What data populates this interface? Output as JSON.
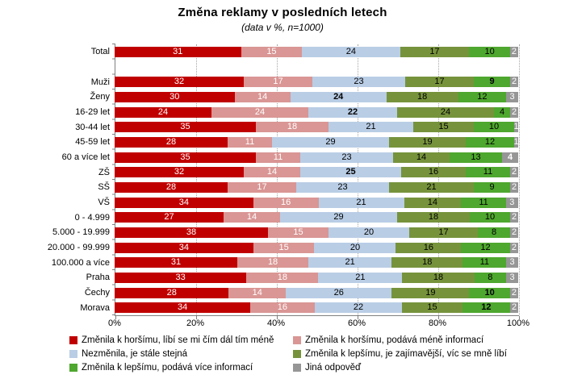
{
  "chart_data": {
    "type": "bar",
    "orientation": "horizontal",
    "stacked": true,
    "title": "Změna reklamy v posledních letech",
    "subtitle": "(data v %, n=1000)",
    "unit": "%",
    "xlim": [
      0,
      100
    ],
    "x_ticks": [
      "0%",
      "20%",
      "40%",
      "60%",
      "80%",
      "100%"
    ],
    "grid_percents": [
      20,
      40,
      60,
      80,
      100
    ],
    "legend_position": "bottom",
    "series": [
      {
        "name": "Změnila k horšímu, líbí se mi čím dál tím méně",
        "color": "#C00000",
        "label_color": "#FFFFFF"
      },
      {
        "name": "Změnila k horšímu, podává méně informací",
        "color": "#D99694",
        "label_color": "#FFFFFF"
      },
      {
        "name": "Nezměnila, je stále stejná",
        "color": "#B9CDE5",
        "label_color": "#000000"
      },
      {
        "name": "Změnila k lepšímu, je zajímavější, víc se mně líbí",
        "color": "#76933C",
        "label_color": "#000000"
      },
      {
        "name": "Změnila k lepšímu, podává více informací",
        "color": "#4EA72E",
        "label_color": "#000000"
      },
      {
        "name": "Jiná odpověď",
        "color": "#969696",
        "label_color": "#FFFFFF"
      }
    ],
    "categories": [
      "Total",
      "Muži",
      "Ženy",
      "16-29 let",
      "30-44 let",
      "45-59 let",
      "60 a více let",
      "ZŠ",
      "SŠ",
      "VŠ",
      "0 - 4.999",
      "5.000 - 19.999",
      "20.000 - 99.999",
      "100.000 a více",
      "Praha",
      "Čechy",
      "Morava"
    ],
    "rows": [
      {
        "label": "Total",
        "values": [
          31,
          15,
          24,
          17,
          10,
          2
        ],
        "bold": [],
        "gap_after": true
      },
      {
        "label": "Muži",
        "values": [
          32,
          17,
          23,
          17,
          9,
          2
        ],
        "bold": [
          4
        ]
      },
      {
        "label": "Ženy",
        "values": [
          30,
          14,
          24,
          18,
          12,
          3
        ],
        "bold": [
          2
        ]
      },
      {
        "label": "16-29 let",
        "values": [
          24,
          24,
          22,
          24,
          4,
          2
        ],
        "bold": [
          2
        ]
      },
      {
        "label": "30-44 let",
        "values": [
          35,
          18,
          21,
          15,
          10,
          1
        ],
        "bold": []
      },
      {
        "label": "45-59 let",
        "values": [
          28,
          11,
          29,
          19,
          12,
          1
        ],
        "bold": []
      },
      {
        "label": "60 a více let",
        "values": [
          35,
          11,
          23,
          14,
          13,
          4
        ],
        "bold": [
          5
        ]
      },
      {
        "label": "ZŠ",
        "values": [
          32,
          14,
          25,
          16,
          11,
          2
        ],
        "bold": [
          2
        ]
      },
      {
        "label": "SŠ",
        "values": [
          28,
          17,
          23,
          21,
          9,
          2
        ],
        "bold": []
      },
      {
        "label": "VŠ",
        "values": [
          34,
          16,
          21,
          14,
          11,
          3
        ],
        "bold": []
      },
      {
        "label": "0 - 4.999",
        "values": [
          27,
          14,
          29,
          18,
          10,
          2
        ],
        "bold": []
      },
      {
        "label": "5.000 - 19.999",
        "values": [
          38,
          15,
          20,
          17,
          8,
          2
        ],
        "bold": []
      },
      {
        "label": "20.000 - 99.999",
        "values": [
          34,
          15,
          20,
          16,
          12,
          2
        ],
        "bold": []
      },
      {
        "label": "100.000 a více",
        "values": [
          31,
          18,
          21,
          18,
          11,
          3
        ],
        "bold": []
      },
      {
        "label": "Praha",
        "values": [
          33,
          18,
          21,
          18,
          8,
          3
        ],
        "bold": []
      },
      {
        "label": "Čechy",
        "values": [
          28,
          14,
          26,
          19,
          10,
          2
        ],
        "bold": [
          4
        ]
      },
      {
        "label": "Morava",
        "values": [
          34,
          16,
          22,
          15,
          12,
          2
        ],
        "bold": [
          4
        ]
      }
    ],
    "colors": {
      "axis": "#808080",
      "gridline": "#A6A6A6",
      "background": "#FFFFFF"
    }
  }
}
